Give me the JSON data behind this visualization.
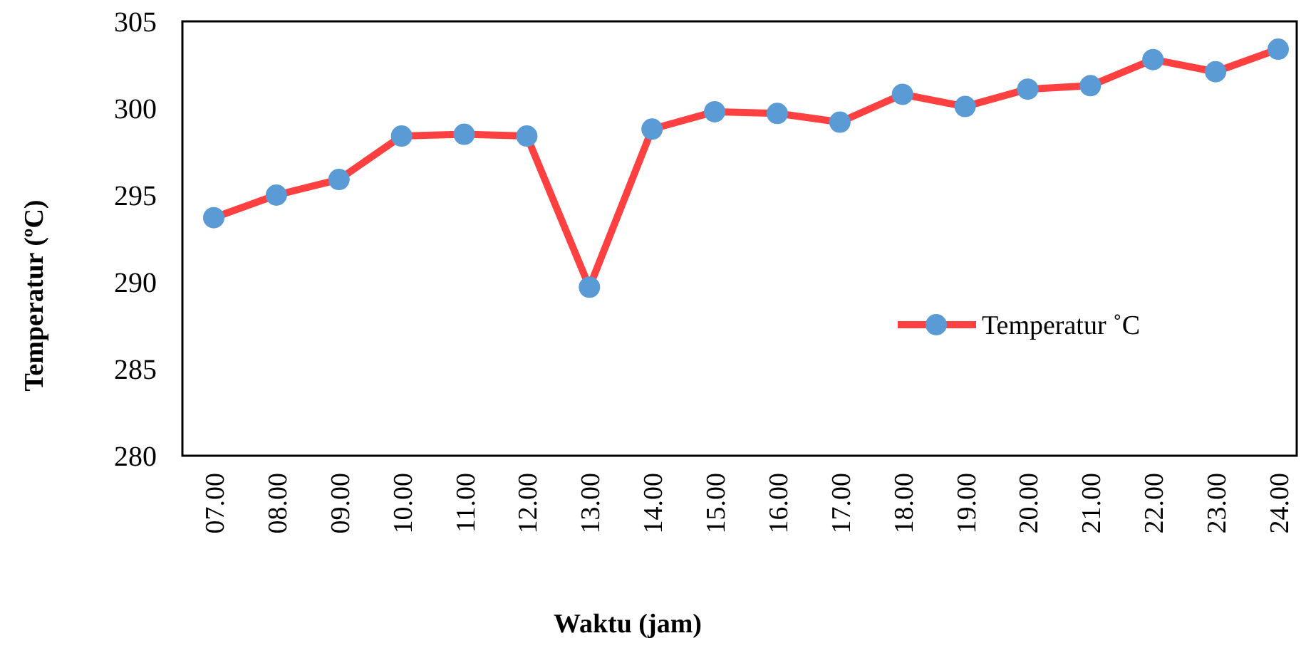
{
  "chart_data": {
    "type": "line",
    "xlabel": "Waktu (jam)",
    "ylabel": "Temperatur (ºC)",
    "categories": [
      "07.00",
      "08.00",
      "09.00",
      "10.00",
      "11.00",
      "12.00",
      "13.00",
      "14.00",
      "15.00",
      "16.00",
      "17.00",
      "18.00",
      "19.00",
      "20.00",
      "21.00",
      "22.00",
      "23.00",
      "24.00"
    ],
    "series": [
      {
        "name": "Temperatur ˚C",
        "color": "#ff4040",
        "values": [
          293.7,
          295.0,
          295.9,
          298.4,
          298.5,
          298.4,
          289.7,
          298.8,
          299.8,
          299.7,
          299.2,
          300.8,
          300.1,
          301.1,
          301.3,
          302.8,
          302.1,
          303.4
        ]
      }
    ],
    "marker": "circle",
    "line_style": "solid",
    "ylim": [
      280,
      305
    ],
    "yticks": [
      280,
      285,
      290,
      295,
      300,
      305
    ],
    "grid": false,
    "legend": "right"
  }
}
